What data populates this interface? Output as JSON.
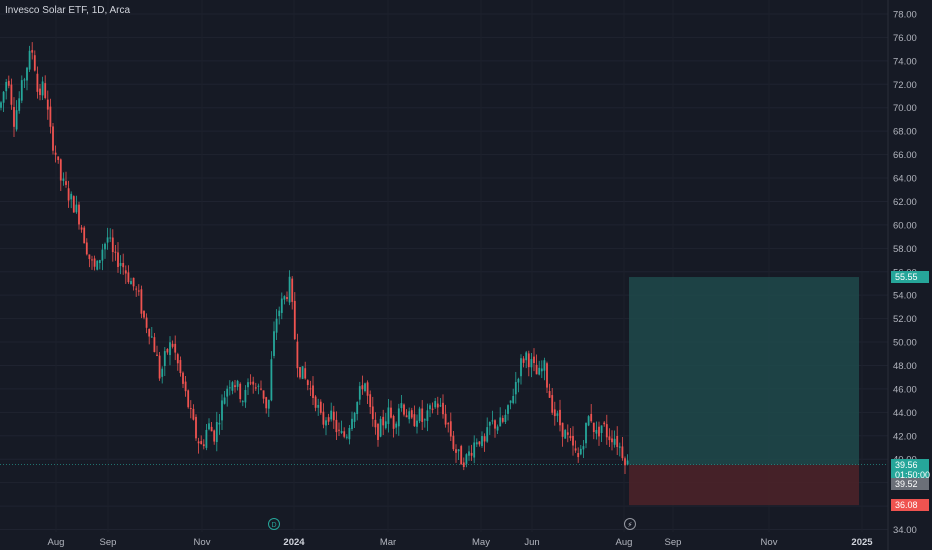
{
  "chart_title": "Invesco Solar ETF, 1D, Arca",
  "chart_data": {
    "type": "candlestick",
    "y_ticks": [
      "78.00",
      "76.00",
      "74.00",
      "72.00",
      "70.00",
      "68.00",
      "66.00",
      "64.00",
      "62.00",
      "60.00",
      "58.00",
      "56.00",
      "54.00",
      "52.00",
      "50.00",
      "48.00",
      "46.00",
      "44.00",
      "42.00",
      "40.00",
      "38.00",
      "36.00",
      "34.00"
    ],
    "ylim": [
      34,
      79
    ],
    "x_ticks": [
      {
        "label": "Aug",
        "bold": false
      },
      {
        "label": "Sep",
        "bold": false
      },
      {
        "label": "Nov",
        "bold": false
      },
      {
        "label": "2024",
        "bold": true
      },
      {
        "label": "Mar",
        "bold": false
      },
      {
        "label": "May",
        "bold": false
      },
      {
        "label": "Jun",
        "bold": false
      },
      {
        "label": "Aug",
        "bold": false
      },
      {
        "label": "Sep",
        "bold": false
      },
      {
        "label": "Nov",
        "bold": false
      },
      {
        "label": "2025",
        "bold": true
      }
    ],
    "path_points": [
      [
        0,
        70
      ],
      [
        8,
        73
      ],
      [
        14,
        69
      ],
      [
        20,
        71
      ],
      [
        28,
        74
      ],
      [
        33,
        75
      ],
      [
        38,
        71
      ],
      [
        44,
        72
      ],
      [
        50,
        68
      ],
      [
        56,
        66
      ],
      [
        60,
        64
      ],
      [
        66,
        63
      ],
      [
        72,
        62
      ],
      [
        78,
        61
      ],
      [
        84,
        59
      ],
      [
        90,
        57
      ],
      [
        96,
        56
      ],
      [
        102,
        58
      ],
      [
        108,
        59
      ],
      [
        114,
        57
      ],
      [
        120,
        57
      ],
      [
        126,
        56
      ],
      [
        132,
        55
      ],
      [
        138,
        54
      ],
      [
        144,
        52
      ],
      [
        150,
        51
      ],
      [
        156,
        49
      ],
      [
        160,
        47
      ],
      [
        166,
        49
      ],
      [
        172,
        50
      ],
      [
        178,
        48
      ],
      [
        184,
        46
      ],
      [
        190,
        44
      ],
      [
        196,
        42
      ],
      [
        202,
        41
      ],
      [
        208,
        43
      ],
      [
        214,
        42
      ],
      [
        220,
        44
      ],
      [
        226,
        46
      ],
      [
        232,
        47
      ],
      [
        238,
        46
      ],
      [
        244,
        45
      ],
      [
        250,
        47
      ],
      [
        256,
        46
      ],
      [
        262,
        46
      ],
      [
        268,
        44
      ],
      [
        272,
        49
      ],
      [
        276,
        52
      ],
      [
        280,
        53
      ],
      [
        286,
        54
      ],
      [
        290,
        55
      ],
      [
        294,
        51
      ],
      [
        298,
        48
      ],
      [
        304,
        47
      ],
      [
        310,
        46
      ],
      [
        316,
        45
      ],
      [
        322,
        43
      ],
      [
        328,
        44
      ],
      [
        334,
        43
      ],
      [
        340,
        42
      ],
      [
        346,
        42
      ],
      [
        352,
        44
      ],
      [
        358,
        45
      ],
      [
        364,
        47
      ],
      [
        370,
        44
      ],
      [
        376,
        42
      ],
      [
        382,
        43
      ],
      [
        388,
        44
      ],
      [
        394,
        43
      ],
      [
        400,
        45
      ],
      [
        406,
        44
      ],
      [
        412,
        43
      ],
      [
        418,
        44
      ],
      [
        424,
        43
      ],
      [
        430,
        44
      ],
      [
        436,
        45
      ],
      [
        442,
        44
      ],
      [
        448,
        43
      ],
      [
        454,
        41
      ],
      [
        460,
        40
      ],
      [
        466,
        40
      ],
      [
        472,
        41
      ],
      [
        478,
        42
      ],
      [
        484,
        41
      ],
      [
        490,
        43
      ],
      [
        496,
        43
      ],
      [
        502,
        43
      ],
      [
        508,
        44
      ],
      [
        514,
        46
      ],
      [
        520,
        48
      ],
      [
        526,
        49
      ],
      [
        532,
        48
      ],
      [
        538,
        47
      ],
      [
        544,
        48
      ],
      [
        548,
        46
      ],
      [
        554,
        44
      ],
      [
        560,
        43
      ],
      [
        566,
        42
      ],
      [
        572,
        41
      ],
      [
        578,
        40
      ],
      [
        584,
        42
      ],
      [
        590,
        44
      ],
      [
        596,
        42
      ],
      [
        602,
        43
      ],
      [
        608,
        42
      ],
      [
        614,
        42
      ],
      [
        620,
        41
      ],
      [
        626,
        40
      ],
      [
        628,
        39.5
      ]
    ],
    "last_price": "39.56",
    "countdown": "01:50:00",
    "target_price": "55.55",
    "entry_price": "39.52",
    "stop_price": "36.08",
    "colors": {
      "up": "#26a69a",
      "down": "#ef5350",
      "profit_zone": "#1f4a4b",
      "loss_zone": "#4a2229",
      "background": "#161a25"
    }
  },
  "event_badges": {
    "dividend": "D",
    "earnings": "⚡"
  }
}
